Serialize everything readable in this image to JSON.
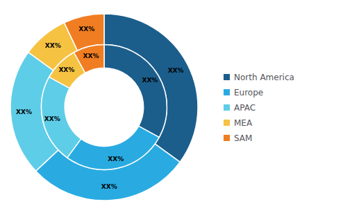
{
  "chart_data": {
    "type": "pie",
    "categories": [
      "North America",
      "Europe",
      "APAC",
      "MEA",
      "SAM"
    ],
    "colors": [
      "#1b5e8c",
      "#29abe2",
      "#5ecde8",
      "#f5c242",
      "#f07d22"
    ],
    "series": [
      {
        "values": [
          35,
          28,
          22,
          8,
          7
        ],
        "value_labels": [
          "XX%",
          "XX%",
          "XX%",
          "XX%",
          "XX%"
        ]
      },
      {
        "values": [
          33,
          27,
          23,
          9,
          8
        ],
        "value_labels": [
          "XX%",
          "XX%",
          "XX%",
          "XX%",
          "XX%"
        ]
      }
    ],
    "data_labels": true,
    "legend": "right"
  }
}
